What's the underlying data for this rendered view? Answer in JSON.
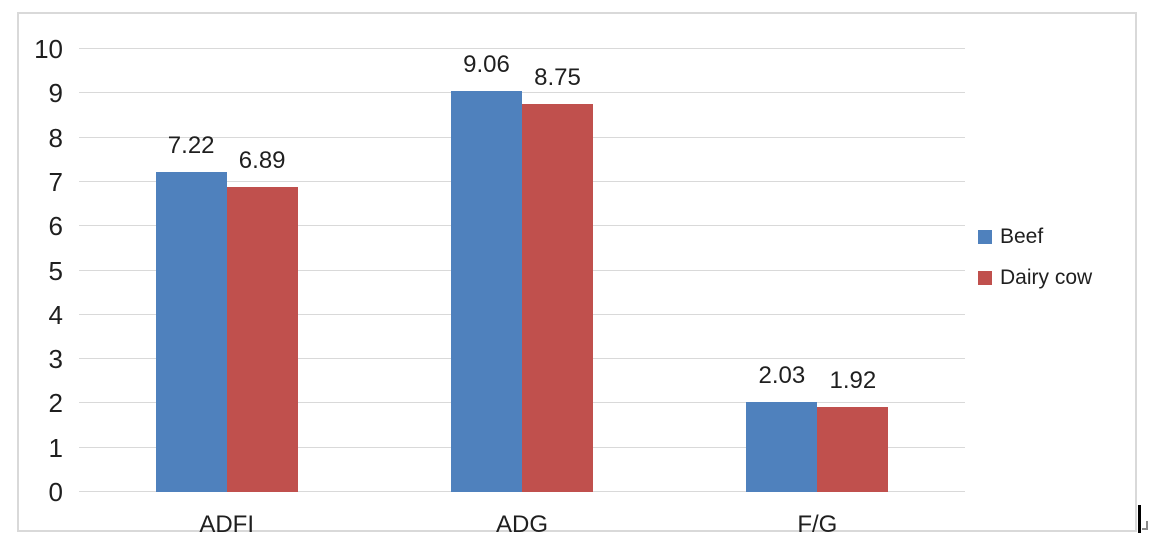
{
  "chart_data": {
    "type": "bar",
    "categories": [
      "ADFI",
      "ADG",
      "F/G"
    ],
    "series": [
      {
        "name": "Beef",
        "color": "#4F81BD",
        "values": [
          7.22,
          9.06,
          2.03
        ],
        "labels": [
          "7.22",
          "9.06",
          "2.03"
        ]
      },
      {
        "name": "Dairy cow",
        "color": "#C0504D",
        "values": [
          6.89,
          8.75,
          1.92
        ],
        "labels": [
          "6.89",
          "8.75",
          "1.92"
        ]
      }
    ],
    "ylim": [
      0,
      10
    ],
    "y_tick_labels": [
      "0",
      "1",
      "2",
      "3",
      "4",
      "5",
      "6",
      "7",
      "8",
      "9",
      "10"
    ],
    "grid": true,
    "data_labels_shown": true,
    "legend_position": "right"
  },
  "colors": {
    "background": "#FFFFFF",
    "chart_border": "#D9D9D9",
    "gridline": "#D9D9D9",
    "text": "#1F1F1F",
    "series_beef": "#4F81BD",
    "series_dairy_cow": "#C0504D",
    "cursor": "#000000"
  }
}
